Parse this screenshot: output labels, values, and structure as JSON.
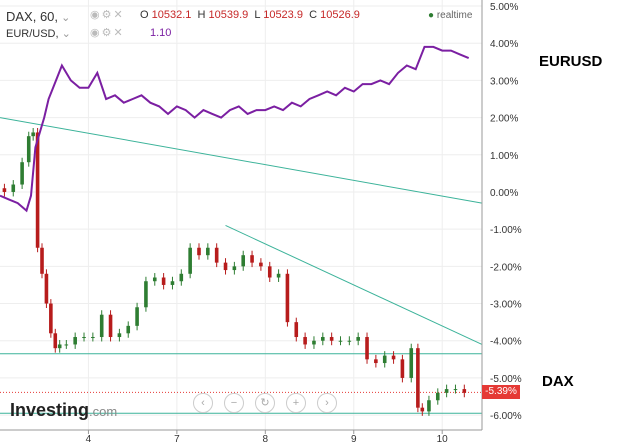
{
  "legend": {
    "symbol": "DAX, 60,",
    "ohlc": [
      {
        "key": "O",
        "value": "10532.1"
      },
      {
        "key": "H",
        "value": "10539.9"
      },
      {
        "key": "L",
        "value": "10523.9"
      },
      {
        "key": "C",
        "value": "10526.9"
      }
    ],
    "realtime": "realtime",
    "overlay_symbol": "EUR/USD,",
    "overlay_value": "1.10"
  },
  "annotations": {
    "eurusd": "EURUSD",
    "dax": "DAX"
  },
  "brand": {
    "name": "Investing",
    "suffix": ".com"
  },
  "controls": [
    "rewind-icon",
    "zoom-out-icon",
    "reset-icon",
    "zoom-in-icon",
    "forward-icon"
  ],
  "colors": {
    "up": "#2e7d32",
    "down": "#b71c1c",
    "overlay": "#7b1fa2",
    "trend": "#3cb39a",
    "last": "#e53935"
  },
  "chart_data": {
    "type": "line",
    "y_ticks": [
      "5.00%",
      "4.00%",
      "3.00%",
      "2.00%",
      "1.00%",
      "0.00%",
      "-1.00%",
      "-2.00%",
      "-3.00%",
      "-4.00%",
      "-5.00%",
      "-6.00%"
    ],
    "ylim": [
      -6.4,
      5.0
    ],
    "x_ticks": [
      {
        "label": "4",
        "x": 1.0
      },
      {
        "label": "7",
        "x": 2.0
      },
      {
        "label": "8",
        "x": 3.0
      },
      {
        "label": "9",
        "x": 4.0
      },
      {
        "label": "10",
        "x": 5.0
      }
    ],
    "xlim": [
      0.0,
      5.45
    ],
    "last_price_label": "-5.39%",
    "last_price_value": -5.39,
    "series": [
      {
        "name": "EUR/USD",
        "x": [
          0.0,
          0.1,
          0.2,
          0.3,
          0.35,
          0.4,
          0.5,
          0.55,
          0.6,
          0.7,
          0.8,
          0.9,
          1.0,
          1.1,
          1.2,
          1.3,
          1.4,
          1.5,
          1.6,
          1.7,
          1.8,
          1.9,
          2.0,
          2.1,
          2.2,
          2.3,
          2.4,
          2.5,
          2.6,
          2.7,
          2.8,
          2.9,
          3.0,
          3.1,
          3.2,
          3.3,
          3.4,
          3.5,
          3.6,
          3.7,
          3.8,
          3.9,
          4.0,
          4.1,
          4.2,
          4.3,
          4.4,
          4.5,
          4.6,
          4.7,
          4.8,
          4.9,
          5.0,
          5.1,
          5.2,
          5.3
        ],
        "values": [
          -0.1,
          -0.2,
          -0.3,
          -0.5,
          -0.1,
          1.2,
          2.0,
          2.5,
          2.8,
          3.4,
          3.0,
          2.8,
          2.8,
          3.2,
          2.5,
          2.6,
          2.4,
          2.5,
          2.6,
          2.4,
          2.3,
          2.1,
          2.3,
          2.2,
          2.0,
          2.2,
          2.1,
          2.0,
          2.2,
          2.3,
          2.1,
          2.2,
          2.2,
          2.3,
          2.2,
          2.4,
          2.3,
          2.5,
          2.6,
          2.7,
          2.6,
          2.8,
          2.7,
          2.9,
          2.9,
          3.0,
          2.9,
          3.2,
          3.4,
          3.3,
          3.9,
          3.9,
          3.8,
          3.8,
          3.7,
          3.6
        ]
      },
      {
        "name": "DAX",
        "x": [
          0.0,
          0.1,
          0.2,
          0.3,
          0.35,
          0.4,
          0.45,
          0.5,
          0.55,
          0.6,
          0.65,
          0.7,
          0.8,
          0.9,
          1.0,
          1.1,
          1.2,
          1.3,
          1.4,
          1.5,
          1.6,
          1.7,
          1.8,
          1.9,
          2.0,
          2.1,
          2.2,
          2.3,
          2.4,
          2.5,
          2.6,
          2.7,
          2.8,
          2.9,
          3.0,
          3.1,
          3.2,
          3.3,
          3.4,
          3.5,
          3.6,
          3.7,
          3.8,
          3.9,
          4.0,
          4.1,
          4.2,
          4.3,
          4.4,
          4.5,
          4.6,
          4.7,
          4.75,
          4.8,
          4.9,
          5.0,
          5.1,
          5.2,
          5.3
        ],
        "values": [
          0.1,
          0.0,
          0.2,
          0.8,
          1.5,
          1.6,
          -1.5,
          -2.2,
          -3.0,
          -3.8,
          -4.2,
          -4.1,
          -4.1,
          -3.9,
          -3.9,
          -3.9,
          -3.3,
          -3.9,
          -3.8,
          -3.6,
          -3.1,
          -2.4,
          -2.3,
          -2.5,
          -2.4,
          -2.2,
          -1.5,
          -1.7,
          -1.5,
          -1.9,
          -2.1,
          -2.0,
          -1.7,
          -1.9,
          -2.0,
          -2.3,
          -2.2,
          -3.5,
          -3.9,
          -4.1,
          -4.0,
          -3.9,
          -4.0,
          -4.0,
          -4.0,
          -3.9,
          -4.5,
          -4.6,
          -4.4,
          -4.5,
          -5.0,
          -4.2,
          -5.8,
          -5.9,
          -5.6,
          -5.4,
          -5.3,
          -5.3,
          -5.4
        ]
      }
    ],
    "trendlines": [
      {
        "from": [
          0.0,
          2.0
        ],
        "to": [
          5.45,
          -0.3
        ]
      },
      {
        "from": [
          2.55,
          -0.9
        ],
        "to": [
          5.45,
          -4.1
        ]
      },
      {
        "from": [
          0.0,
          -4.35
        ],
        "to": [
          5.45,
          -4.35
        ]
      },
      {
        "from": [
          0.0,
          -5.95
        ],
        "to": [
          5.45,
          -5.95
        ]
      }
    ]
  }
}
